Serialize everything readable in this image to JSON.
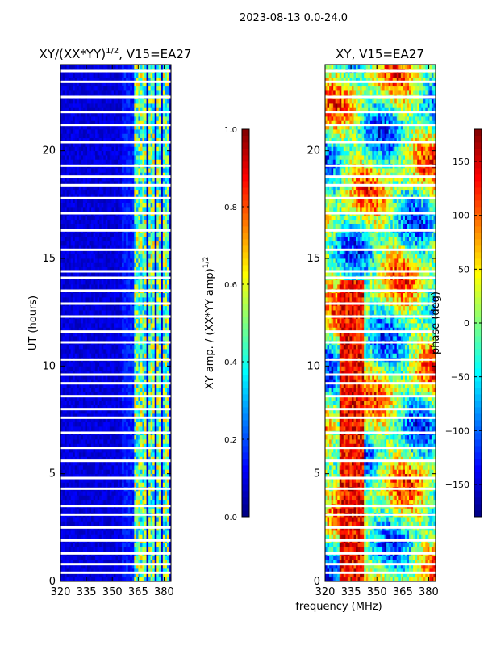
{
  "suptitle": "2023-08-13 0.0-24.0",
  "chart_data": [
    {
      "type": "heatmap",
      "title": "XY/(XX*YY)^1/2, V15=EA27",
      "title_main": "XY/(XX*YY)",
      "title_exp": "1/2",
      "title_suffix": ", V15=EA27",
      "xlabel": "",
      "ylabel": "UT (hours)",
      "xlim": [
        320,
        384
      ],
      "ylim": [
        0,
        24
      ],
      "xticks": [
        320,
        335,
        350,
        365,
        380
      ],
      "yticks": [
        0,
        5,
        10,
        15,
        20
      ],
      "colorbar": {
        "label": "XY amp. / (XX*YY amp)^1/2",
        "label_main": "XY amp. / (XX*YY amp)",
        "label_exp": "1/2",
        "range": [
          0.0,
          1.0
        ],
        "ticks": [
          "0.0",
          "0.2",
          "0.4",
          "0.6",
          "0.8",
          "1.0"
        ],
        "tick_values": [
          0.0,
          0.2,
          0.4,
          0.6,
          0.8,
          1.0
        ]
      },
      "colormap": "jet",
      "active_channels_mhz": [
        [
          363,
          367
        ],
        [
          368,
          370
        ],
        [
          371,
          375
        ],
        [
          376,
          378
        ],
        [
          379,
          383
        ]
      ],
      "typical_value_background": 0.05,
      "typical_value_active": 0.45,
      "flagged_hours": [
        0.4,
        0.8,
        1.3,
        1.9,
        2.5,
        3.1,
        3.5,
        4.3,
        4.8,
        5.6,
        6.2,
        6.9,
        7.6,
        8.0,
        8.6,
        9.2,
        9.6,
        10.3,
        11.1,
        11.6,
        12.3,
        12.9,
        13.5,
        14.1,
        14.4,
        15.4,
        16.3,
        17.1,
        17.8,
        18.4,
        18.8,
        19.3,
        20.4,
        21.2,
        21.8,
        22.5,
        23.2,
        23.7
      ]
    },
    {
      "type": "heatmap",
      "title": "XY, V15=EA27",
      "xlabel": "frequency (MHz)",
      "ylabel": "",
      "xlim": [
        320,
        384
      ],
      "ylim": [
        0,
        24
      ],
      "xticks": [
        320,
        335,
        350,
        365,
        380
      ],
      "yticks": [
        0,
        5,
        10,
        15,
        20
      ],
      "colorbar": {
        "label": "phase (deg)",
        "range": [
          -180,
          180
        ],
        "ticks": [
          "150",
          "100",
          "50",
          "0",
          "−50",
          "−100",
          "−150"
        ],
        "tick_values": [
          150,
          100,
          50,
          0,
          -50,
          -100,
          -150
        ]
      },
      "colormap": "jet",
      "flagged_hours": [
        0.4,
        0.8,
        1.3,
        1.9,
        2.5,
        3.1,
        3.5,
        4.3,
        4.8,
        5.6,
        6.2,
        6.9,
        7.6,
        8.0,
        8.6,
        9.2,
        9.6,
        10.3,
        11.1,
        11.6,
        12.3,
        12.9,
        13.5,
        14.1,
        14.4,
        15.4,
        16.3,
        17.1,
        17.8,
        18.4,
        18.8,
        19.3,
        20.4,
        21.2,
        21.8,
        22.5,
        23.2,
        23.7
      ]
    }
  ]
}
